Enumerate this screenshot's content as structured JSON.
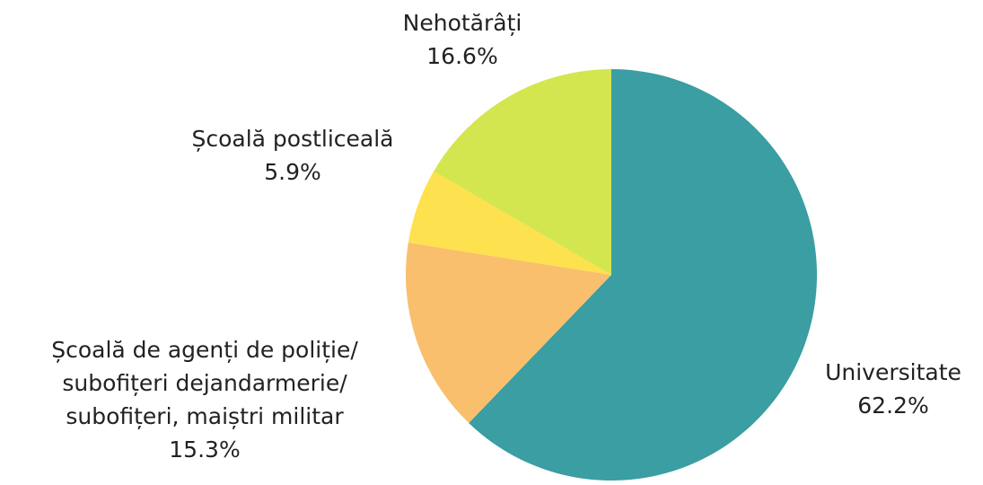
{
  "chart_data": {
    "type": "pie",
    "categories": [
      "Universitate",
      "Școală de agenți de poliție/ subofițeri dejandarmerie/ subofițeri, maiștri militar",
      "Școală postliceală",
      "Nehotărâți"
    ],
    "values": [
      62.2,
      15.3,
      5.9,
      16.6
    ],
    "value_labels": [
      "62.2%",
      "15.3%",
      "5.9%",
      "16.6%"
    ],
    "colors": [
      "#3a9ea3",
      "#f9bf6c",
      "#fde14f",
      "#d3e64f"
    ]
  }
}
